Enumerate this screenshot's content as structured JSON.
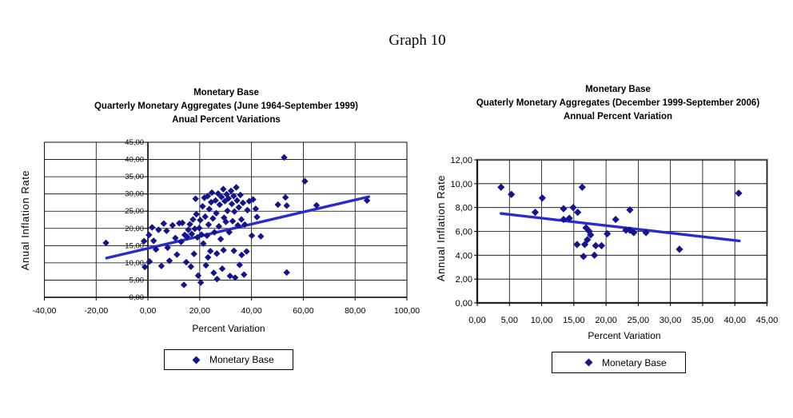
{
  "page": {
    "heading": "Graph 10"
  },
  "colors": {
    "marker": "#14148C",
    "trendline": "#2A2ACF",
    "gridline": "#000000",
    "axis": "#000000",
    "plot_border": "#8C8C8C",
    "text": "#000000",
    "legend_border": "#000000",
    "background": "#FFFFFF"
  },
  "chart_data": [
    {
      "type": "scatter",
      "title_lines": [
        "Monetary Base",
        "Quarterly Monetary Aggregates (June 1964-September 1999)",
        "Anual Percent Variations"
      ],
      "xlabel": "Percent Variation",
      "ylabel": "Anual Inflation Rate",
      "legend_label": "Monetary Base",
      "xlim": [
        -40,
        100
      ],
      "ylim": [
        0,
        45
      ],
      "x_tick_step": 20,
      "y_tick_step": 5,
      "x_ticks": [
        "-40,00",
        "-20,00",
        "0,00",
        "20,00",
        "40,00",
        "60,00",
        "80,00",
        "100,00"
      ],
      "y_ticks": [
        "0,00",
        "5,00",
        "10,00",
        "15,00",
        "20,00",
        "25,00",
        "30,00",
        "35,00",
        "40,00",
        "45,00"
      ],
      "y_axis_at_x": 0,
      "grid": true,
      "legend_position": "bottom",
      "series": [
        {
          "name": "Monetary Base",
          "points": [
            [
              -16.2,
              15.8
            ],
            [
              -1.5,
              16.3
            ],
            [
              -1.2,
              8.8
            ],
            [
              0.4,
              18.1
            ],
            [
              0.6,
              10.4
            ],
            [
              1.6,
              20.3
            ],
            [
              2.2,
              16.4
            ],
            [
              3.1,
              13.9
            ],
            [
              4.1,
              19.6
            ],
            [
              5.2,
              9.1
            ],
            [
              6.1,
              21.4
            ],
            [
              7.2,
              19.3
            ],
            [
              7.6,
              14.4
            ],
            [
              8.3,
              10.6
            ],
            [
              9.5,
              20.9
            ],
            [
              10.6,
              17.2
            ],
            [
              11.2,
              12.4
            ],
            [
              12.1,
              21.5
            ],
            [
              12.8,
              16.1
            ],
            [
              13.3,
              21.6
            ],
            [
              13.9,
              3.6
            ],
            [
              14.2,
              18.1
            ],
            [
              14.8,
              10.2
            ],
            [
              15.1,
              17.6
            ],
            [
              15.6,
              19.6
            ],
            [
              16.2,
              21.2
            ],
            [
              16.6,
              8.9
            ],
            [
              16.9,
              18.4
            ],
            [
              17.4,
              22.6
            ],
            [
              17.8,
              12.6
            ],
            [
              18.1,
              19.9
            ],
            [
              18.4,
              28.6
            ],
            [
              18.7,
              24.1
            ],
            [
              19.1,
              17.4
            ],
            [
              19.4,
              6.3
            ],
            [
              19.8,
              20.1
            ],
            [
              20.2,
              22.4
            ],
            [
              20.4,
              4.3
            ],
            [
              20.7,
              18.2
            ],
            [
              21.1,
              26.4
            ],
            [
              21.4,
              15.6
            ],
            [
              21.8,
              28.9
            ],
            [
              22.1,
              23.4
            ],
            [
              22.4,
              9.3
            ],
            [
              22.8,
              17.9
            ],
            [
              23.1,
              29.4
            ],
            [
              23.2,
              11.6
            ],
            [
              23.4,
              21.1
            ],
            [
              23.7,
              25.6
            ],
            [
              24.1,
              13.4
            ],
            [
              24.4,
              27.6
            ],
            [
              24.7,
              30.4
            ],
            [
              25.1,
              22.9
            ],
            [
              25.4,
              7.1
            ],
            [
              25.7,
              18.9
            ],
            [
              26.1,
              28.1
            ],
            [
              26.4,
              24.4
            ],
            [
              26.6,
              12.7
            ],
            [
              26.7,
              5.3
            ],
            [
              27.1,
              30.1
            ],
            [
              27.4,
              20.6
            ],
            [
              27.7,
              26.9
            ],
            [
              28.1,
              16.9
            ],
            [
              28.4,
              29.1
            ],
            [
              28.7,
              8.3
            ],
            [
              29.1,
              31.4
            ],
            [
              29.2,
              13.7
            ],
            [
              29.4,
              23.1
            ],
            [
              29.7,
              27.9
            ],
            [
              30.1,
              21.9
            ],
            [
              30.4,
              29.9
            ],
            [
              30.7,
              25.1
            ],
            [
              31.1,
              28.7
            ],
            [
              31.4,
              18.9
            ],
            [
              31.7,
              6.2
            ],
            [
              32.1,
              30.9
            ],
            [
              32.4,
              27.1
            ],
            [
              32.7,
              22.1
            ],
            [
              33.1,
              29.4
            ],
            [
              33.2,
              13.5
            ],
            [
              33.4,
              24.9
            ],
            [
              33.7,
              5.7
            ],
            [
              34.1,
              31.9
            ],
            [
              34.4,
              28.1
            ],
            [
              34.7,
              20.9
            ],
            [
              35.1,
              26.1
            ],
            [
              35.4,
              9.4
            ],
            [
              35.7,
              29.7
            ],
            [
              36.1,
              22.6
            ],
            [
              36.2,
              12.3
            ],
            [
              36.7,
              27.4
            ],
            [
              37.1,
              6.6
            ],
            [
              37.4,
              21.1
            ],
            [
              38.1,
              13.3
            ],
            [
              38.4,
              25.3
            ],
            [
              39.1,
              27.9
            ],
            [
              40.1,
              17.9
            ],
            [
              40.6,
              28.4
            ],
            [
              41.6,
              25.7
            ],
            [
              42.1,
              23.3
            ],
            [
              43.6,
              17.7
            ],
            [
              50.2,
              26.9
            ],
            [
              52.6,
              40.6
            ],
            [
              53.1,
              29.0
            ],
            [
              53.6,
              26.6
            ],
            [
              53.6,
              7.2
            ],
            [
              60.6,
              33.7
            ],
            [
              65.1,
              26.7
            ],
            [
              84.6,
              28.1
            ]
          ]
        }
      ],
      "trendline": {
        "x1": -16,
        "y1": 11.4,
        "x2": 85.3,
        "y2": 29.2
      }
    },
    {
      "type": "scatter",
      "title_lines": [
        "Monetary Base",
        "Quaterly Monetary Aggregates (December 1999-September 2006)",
        "Annual Percent Variation"
      ],
      "xlabel": "Percent Variation",
      "ylabel": "Annual Inflation Rate",
      "legend_label": "Monetary Base",
      "xlim": [
        0,
        45
      ],
      "ylim": [
        0,
        12
      ],
      "x_tick_step": 5,
      "y_tick_step": 2,
      "x_ticks": [
        "0,00",
        "5,00",
        "10,00",
        "15,00",
        "20,00",
        "25,00",
        "30,00",
        "35,00",
        "40,00",
        "45,00"
      ],
      "y_ticks": [
        "0,00",
        "2,00",
        "4,00",
        "6,00",
        "8,00",
        "10,00",
        "12,00"
      ],
      "y_axis_at_x": 0,
      "grid": true,
      "legend_position": "bottom",
      "series": [
        {
          "name": "Monetary Base",
          "points": [
            [
              3.7,
              9.7
            ],
            [
              5.3,
              9.1
            ],
            [
              9.0,
              7.6
            ],
            [
              10.1,
              8.8
            ],
            [
              13.4,
              7.9
            ],
            [
              13.4,
              7.0
            ],
            [
              14.3,
              7.1
            ],
            [
              14.9,
              8.0
            ],
            [
              15.5,
              4.9
            ],
            [
              15.6,
              7.6
            ],
            [
              16.3,
              9.7
            ],
            [
              16.5,
              3.9
            ],
            [
              16.7,
              4.9
            ],
            [
              16.9,
              6.3
            ],
            [
              17.1,
              5.3
            ],
            [
              17.4,
              6.0
            ],
            [
              17.6,
              5.7
            ],
            [
              18.2,
              4.0
            ],
            [
              18.4,
              4.8
            ],
            [
              19.3,
              4.8
            ],
            [
              20.2,
              5.8
            ],
            [
              21.5,
              7.0
            ],
            [
              23.1,
              6.1
            ],
            [
              23.7,
              6.1
            ],
            [
              23.7,
              7.8
            ],
            [
              24.3,
              5.9
            ],
            [
              26.2,
              5.9
            ],
            [
              31.4,
              4.5
            ],
            [
              40.6,
              9.2
            ]
          ]
        }
      ],
      "trendline": {
        "x1": 3.7,
        "y1": 7.5,
        "x2": 40.7,
        "y2": 5.2
      }
    }
  ]
}
